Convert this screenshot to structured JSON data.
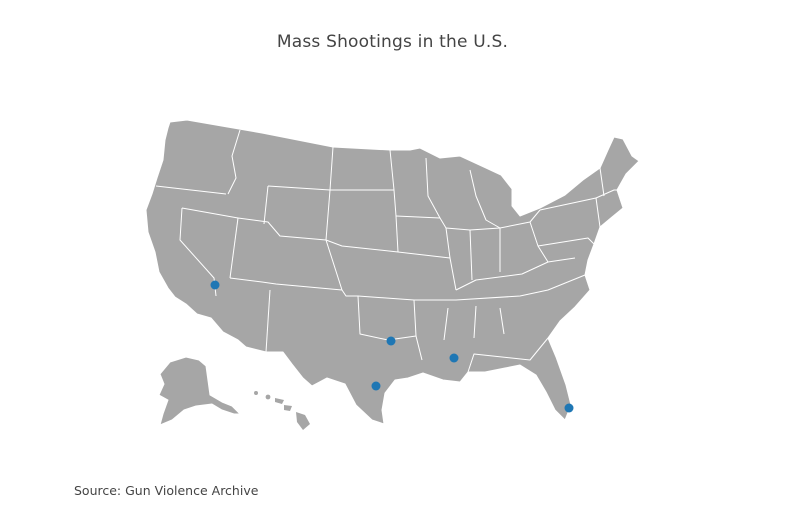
{
  "title": "Mass Shootings in the U.S.",
  "source": "Source: Gun Violence Archive",
  "colors": {
    "land": "#a6a6a6",
    "borders": "#ffffff",
    "marker": "#1f77b4",
    "text": "#444444"
  },
  "map": {
    "projection": "albers-usa",
    "region": "United States",
    "markers": [
      {
        "lon": -115.17,
        "lat": 36.12
      },
      {
        "lon": -96.8,
        "lat": 32.78
      },
      {
        "lon": -98.49,
        "lat": 29.42
      },
      {
        "lon": -91.15,
        "lat": 30.45
      },
      {
        "lon": -80.19,
        "lat": 25.76
      }
    ]
  }
}
